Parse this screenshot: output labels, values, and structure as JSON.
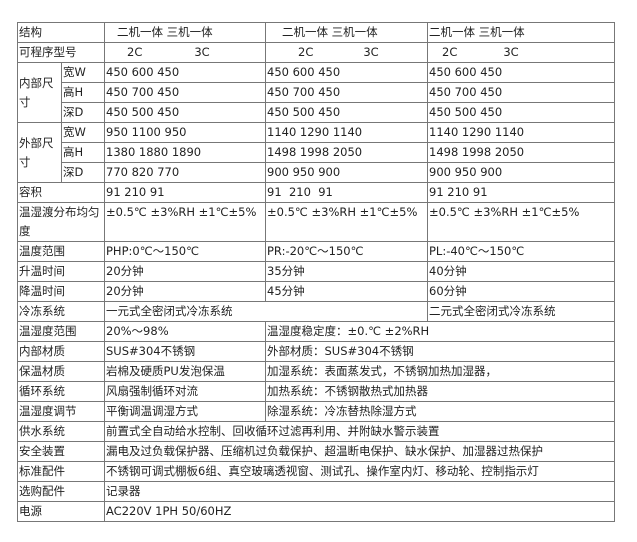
{
  "rows": {
    "structure": {
      "label": "结构",
      "values": [
        "二机一体 三机一体",
        "二机一体 三机一体",
        "二机一体 三机一体"
      ]
    },
    "model": {
      "label": "可程序型号",
      "a": "2C",
      "b": "3C"
    },
    "inner": {
      "label": "内部尺寸",
      "w": {
        "label": "宽W",
        "values": [
          "450 600 450",
          "450 600 450",
          "450 600 450"
        ]
      },
      "h": {
        "label": "高H",
        "values": [
          "450 700 450",
          "450 700 450",
          "450 700 450"
        ]
      },
      "d": {
        "label": "深D",
        "values": [
          "450 500 450",
          "450 500 450",
          "450 500 450"
        ]
      }
    },
    "outer": {
      "label": "外部尺寸",
      "w": {
        "label": "宽W",
        "values": [
          "950 1100 950",
          "1140 1290 1140",
          "1140 1290 1140"
        ]
      },
      "h": {
        "label": "高H",
        "values": [
          "1380 1880 1890",
          "1498 1998 2050",
          "1498 1998 2050"
        ]
      },
      "d": {
        "label": "深D",
        "values": [
          "770 820 770",
          "900 950 900",
          "900 950 900"
        ]
      }
    },
    "volume": {
      "label": "容积",
      "values": [
        "91 210 91",
        "91  210  91",
        "91 210 91"
      ]
    },
    "uniformity": {
      "label": "温湿渡分布均匀度",
      "values": [
        "±0.5℃ ±3%RH ±1℃±5%",
        "±0.5℃ ±3%RH ±1℃±5%",
        "±0.5℃ ±3%RH ±1℃±5%"
      ]
    },
    "temp_range": {
      "label": "温度范围",
      "values": [
        "PHP:0℃～150℃",
        "PR:-20℃～150℃",
        "PL:-40℃～150℃"
      ]
    },
    "heat_time": {
      "label": "升温时间",
      "values": [
        "20分钟",
        "35分钟",
        "40分钟"
      ]
    },
    "cool_time": {
      "label": "降温时间",
      "values": [
        "20分钟",
        "45分钟",
        "60分钟"
      ]
    },
    "refrig": {
      "label": "冷冻系统",
      "a": "一元式全密闭式冷冻系统",
      "b": "二元式全密闭式冷冻系统"
    },
    "humid_range": {
      "label": "温湿度范围",
      "a": "20%～98%",
      "b": "温湿度稳定度：±0.℃ ±2%RH"
    },
    "inner_mat": {
      "label": "内部材质",
      "a": "SUS#304不锈钢",
      "b": "外部材质：SUS#304不锈钢"
    },
    "insulation": {
      "label": "保温材质",
      "a": "岩棉及硬质PU发泡保温",
      "b": "加湿系统：表面蒸发式，不锈钢加热加湿器，"
    },
    "circulation": {
      "label": "循环系统",
      "a": "风扇强制循环对流",
      "b": "加热系统：不锈钢散热式加热器"
    },
    "regulation": {
      "label": "温湿度调节",
      "a": "平衡调温调湿方式",
      "b": "除湿系统：冷冻替热除湿方式"
    },
    "water": {
      "label": "供水系统",
      "value": "前置式全自动给水控制、回收循环过滤再利用、并附缺水警示装置"
    },
    "safety": {
      "label": "安全装置",
      "value": "漏电及过负载保护器、压缩机过负载保护、超温断电保护、缺水保护、加湿器过热保护"
    },
    "standard": {
      "label": "标准配件",
      "value": "不锈钢可调式棚板6组、真空玻璃透视窗、测试孔、操作室内灯、移动轮、控制指示灯"
    },
    "optional": {
      "label": "选购配件",
      "value": "记录器"
    },
    "power": {
      "label": "电源",
      "value": "AC220V 1PH 50/60HZ"
    }
  }
}
